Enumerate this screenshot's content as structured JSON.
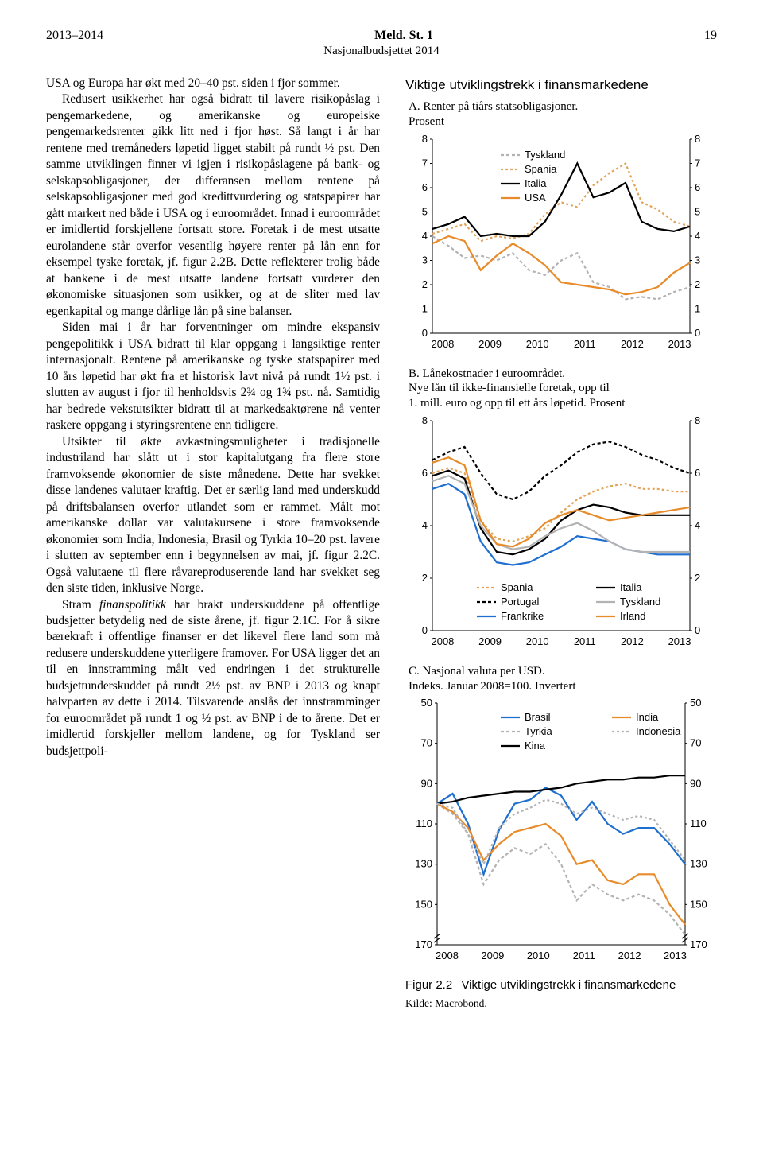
{
  "header": {
    "left": "2013–2014",
    "center_bold": "Meld. St. 1",
    "subtitle": "Nasjonalbudsjettet 2014",
    "pagenum": "19"
  },
  "left_column": {
    "p1": "USA og Europa har økt med 20–40 pst. siden i fjor sommer.",
    "p2": "Redusert usikkerhet har også bidratt til lavere risikopåslag i pengemarkedene, og amerikanske og europeiske pengemarkedsrenter gikk litt ned i fjor høst. Så langt i år har rentene med tremåneders løpetid ligget stabilt på rundt ½ pst. Den samme utviklingen finner vi igjen i risikopåslagene på bank- og selskapsobligasjoner, der differansen mellom rentene på selskapsobligasjoner med god kredittvurdering og statspapirer har gått markert ned både i USA og i euroområdet. Innad i euroområdet er imidlertid forskjellene fortsatt store. Foretak i de mest utsatte eurolandene står overfor vesentlig høyere renter på lån enn for eksempel tyske foretak, jf. figur 2.2B. Dette reflekterer trolig både at bankene i de mest utsatte landene fortsatt vurderer den økonomiske situasjonen som usikker, og at de sliter med lav egenkapital og mange dårlige lån på sine balanser.",
    "p3": "Siden mai i år har forventninger om mindre ekspansiv pengepolitikk i USA bidratt til klar oppgang i langsiktige renter internasjonalt. Rentene på amerikanske og tyske statspapirer med 10 års løpetid har økt fra et historisk lavt nivå på rundt 1½ pst. i slutten av august i fjor til henholdsvis 2¾ og 1¾ pst. nå. Samtidig har bedrede vekstutsikter bidratt til at markedsaktørene nå venter raskere oppgang i styringsrentene enn tidligere.",
    "p4": "Utsikter til økte avkastningsmuligheter i tradisjonelle industriland har slått ut i stor kapitalutgang fra flere store framvoksende økonomier de siste månedene. Dette har svekket disse landenes valutaer kraftig. Det er særlig land med underskudd på driftsbalansen overfor utlandet som er rammet. Målt mot amerikanske dollar var valutakursene i store framvoksende økonomier som India, Indonesia, Brasil og Tyrkia 10–20 pst. lavere i slutten av september enn i begynnelsen av mai, jf. figur 2.2C. Også valutaene til flere råvareproduserende land har svekket seg den siste tiden, inklusive Norge.",
    "p5a": "Stram ",
    "p5b_em": "finanspolitikk",
    "p5c": " har brakt underskuddene på offentlige budsjetter betydelig ned de siste årene, jf. figur 2.1C. For å sikre bærekraft i offentlige finanser er det likevel flere land som må redusere underskuddene ytterligere framover. For USA ligger det an til en innstramming målt ved endringen i det strukturelle budsjettunderskuddet på rundt 2½ pst. av BNP i 2013 og knapt halvparten av dette i 2014. Tilsvarende anslås det innstramminger for euroområdet på rundt 1 og ½ pst. av BNP i de to årene. Det er imidlertid forskjeller mellom landene, og for Tyskland ser budsjettpoli-"
  },
  "right_box": {
    "title": "Viktige utviklingstrekk i finansmarkedene",
    "chartA": {
      "caption_line1": "A. Renter på tiårs statsobligasjoner.",
      "caption_line2": "Prosent",
      "x_labels": [
        "2008",
        "2009",
        "2010",
        "2011",
        "2012",
        "2013"
      ],
      "y_ticks": [
        "0",
        "1",
        "2",
        "3",
        "4",
        "5",
        "6",
        "7",
        "8"
      ],
      "ylim": [
        0,
        8
      ],
      "legend": [
        "Tyskland",
        "Spania",
        "Italia",
        "USA"
      ],
      "colors": {
        "Tyskland": "#b3b3b3",
        "Spania": "#e2a45a",
        "Italia": "#000000",
        "USA": "#e88b2a"
      },
      "dash": {
        "Tyskland": "4,3",
        "Spania": "3,3",
        "Italia": "",
        "USA": ""
      },
      "series": {
        "Tyskland": [
          4.0,
          3.6,
          3.1,
          3.2,
          3.0,
          3.3,
          2.6,
          2.4,
          3.0,
          3.3,
          2.1,
          1.9,
          1.4,
          1.5,
          1.4,
          1.7,
          1.9
        ],
        "Spania": [
          4.1,
          4.3,
          4.5,
          3.8,
          4.0,
          3.9,
          4.1,
          4.9,
          5.4,
          5.2,
          6.1,
          6.6,
          7.0,
          5.4,
          5.1,
          4.6,
          4.4
        ],
        "Italia": [
          4.3,
          4.5,
          4.8,
          4.0,
          4.1,
          4.0,
          4.0,
          4.6,
          5.7,
          7.0,
          5.6,
          5.8,
          6.2,
          4.6,
          4.3,
          4.2,
          4.4
        ],
        "USA": [
          3.7,
          4.0,
          3.8,
          2.6,
          3.2,
          3.7,
          3.3,
          2.8,
          2.1,
          2.0,
          1.9,
          1.8,
          1.6,
          1.7,
          1.9,
          2.5,
          2.9
        ]
      },
      "background_color": "#ffffff",
      "axis_color": "#000000",
      "label_fontsize": 13
    },
    "chartB": {
      "caption_line1": "B. Lånekostnader i euroområdet.",
      "caption_line2": "Nye lån til ikke-finansielle foretak, opp til",
      "caption_line3": "1. mill. euro og opp til ett års løpetid. Prosent",
      "x_labels": [
        "2008",
        "2009",
        "2010",
        "2011",
        "2012",
        "2013"
      ],
      "y_ticks": [
        "0",
        "2",
        "4",
        "6",
        "8"
      ],
      "ylim": [
        0,
        8
      ],
      "legend_left": [
        "Spania",
        "Portugal",
        "Frankrike"
      ],
      "legend_right": [
        "Italia",
        "Tyskland",
        "Irland"
      ],
      "colors": {
        "Spania": "#e2a45a",
        "Portugal": "#000000",
        "Frankrike": "#1f6fd1",
        "Italia": "#000000",
        "Tyskland": "#b3b3b3",
        "Irland": "#e88b2a"
      },
      "dash": {
        "Spania": "3,3",
        "Portugal": "4,3",
        "Frankrike": "",
        "Italia": "",
        "Tyskland": "",
        "Irland": ""
      },
      "series": {
        "Spania": [
          6.0,
          6.2,
          6.0,
          4.2,
          3.5,
          3.4,
          3.6,
          3.9,
          4.5,
          5.0,
          5.3,
          5.5,
          5.6,
          5.4,
          5.4,
          5.3,
          5.3
        ],
        "Portugal": [
          6.5,
          6.8,
          7.0,
          6.0,
          5.2,
          5.0,
          5.3,
          5.9,
          6.3,
          6.8,
          7.1,
          7.2,
          7.0,
          6.7,
          6.5,
          6.2,
          6.0
        ],
        "Frankrike": [
          5.4,
          5.6,
          5.2,
          3.4,
          2.6,
          2.5,
          2.6,
          2.9,
          3.2,
          3.6,
          3.5,
          3.4,
          3.1,
          3.0,
          2.9,
          2.9,
          2.9
        ],
        "Italia": [
          5.9,
          6.1,
          5.8,
          3.9,
          3.0,
          2.9,
          3.1,
          3.5,
          4.2,
          4.6,
          4.8,
          4.7,
          4.5,
          4.4,
          4.4,
          4.4,
          4.4
        ],
        "Tyskland": [
          5.7,
          5.9,
          5.6,
          4.0,
          3.3,
          3.1,
          3.2,
          3.6,
          3.9,
          4.1,
          3.8,
          3.4,
          3.1,
          3.0,
          3.0,
          3.0,
          3.0
        ],
        "Irland": [
          6.4,
          6.6,
          6.3,
          4.2,
          3.3,
          3.2,
          3.5,
          4.1,
          4.4,
          4.6,
          4.4,
          4.2,
          4.3,
          4.4,
          4.5,
          4.6,
          4.7
        ]
      },
      "background_color": "#ffffff",
      "axis_color": "#000000",
      "label_fontsize": 13
    },
    "chartC": {
      "caption_line1": "C. Nasjonal valuta per USD.",
      "caption_line2": "Indeks. Januar 2008=100. Invertert",
      "x_labels": [
        "2008",
        "2009",
        "2010",
        "2011",
        "2012",
        "2013"
      ],
      "y_ticks": [
        "50",
        "70",
        "90",
        "110",
        "130",
        "150",
        "170"
      ],
      "ylim": [
        50,
        170
      ],
      "legend_left": [
        "Brasil",
        "Tyrkia",
        "Kina"
      ],
      "legend_right": [
        "India",
        "Indonesia"
      ],
      "colors": {
        "Brasil": "#1f6fd1",
        "Tyrkia": "#b3b3b3",
        "Kina": "#000000",
        "India": "#e88b2a",
        "Indonesia": "#b3b3b3"
      },
      "dash": {
        "Brasil": "",
        "Tyrkia": "4,3",
        "Kina": "",
        "India": "",
        "Indonesia": "3,3"
      },
      "series": {
        "Brasil": [
          100,
          95,
          110,
          135,
          113,
          100,
          98,
          92,
          96,
          108,
          99,
          110,
          115,
          112,
          112,
          120,
          130
        ],
        "Tyrkia": [
          100,
          105,
          115,
          140,
          128,
          122,
          125,
          120,
          130,
          148,
          140,
          145,
          148,
          145,
          148,
          155,
          165
        ],
        "Kina": [
          100,
          99,
          97,
          96,
          95,
          94,
          94,
          93,
          92,
          90,
          89,
          88,
          88,
          87,
          87,
          86,
          86
        ],
        "India": [
          100,
          104,
          112,
          128,
          120,
          114,
          112,
          110,
          116,
          130,
          128,
          138,
          140,
          135,
          135,
          150,
          160
        ],
        "Indonesia": [
          100,
          102,
          115,
          130,
          112,
          105,
          102,
          98,
          100,
          105,
          102,
          105,
          108,
          106,
          108,
          118,
          128
        ]
      },
      "background_color": "#ffffff",
      "axis_color": "#000000",
      "label_fontsize": 13,
      "axis_break": true
    },
    "figure_caption_num": "Figur 2.2",
    "figure_caption_text": "Viktige utviklingstrekk i finansmarkedene",
    "source": "Kilde: Macrobond."
  }
}
